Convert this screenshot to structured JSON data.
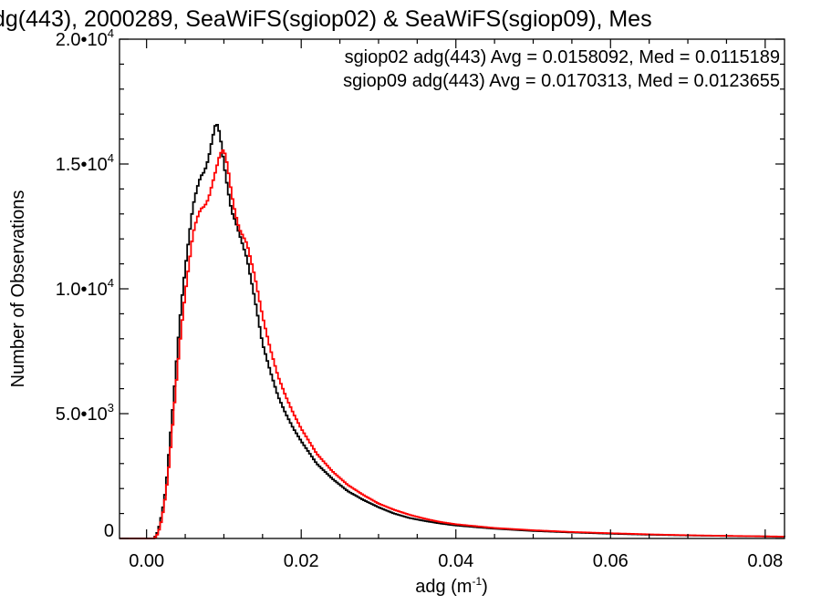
{
  "chart_data": {
    "type": "line",
    "title": "dg(443), 2000289, SeaWiFS(sgiop02) & SeaWiFS(sgiop09), Mes",
    "xlabel": "adg (m",
    "xlabel_sup": "-1",
    "xlabel_close": ")",
    "ylabel": "Number of Observations",
    "xlim": [
      -0.0035,
      0.0825
    ],
    "ylim": [
      0,
      20000
    ],
    "x_ticks": [
      0.0,
      0.02,
      0.04,
      0.06,
      0.08
    ],
    "x_tick_labels": [
      "0.00",
      "0.02",
      "0.04",
      "0.06",
      "0.08"
    ],
    "y_ticks": [
      0,
      5000,
      10000,
      15000,
      20000
    ],
    "y_tick_labels": [
      {
        "base": "0",
        "exp": ""
      },
      {
        "base": "5.0•10",
        "exp": "3"
      },
      {
        "base": "1.0•10",
        "exp": "4"
      },
      {
        "base": "1.5•10",
        "exp": "4"
      },
      {
        "base": "2.0•10",
        "exp": "4"
      }
    ],
    "grid": false,
    "legend_position": "top-right",
    "series": [
      {
        "name": "sgiop02 adg(443) Avg = 0.0158092, Med = 0.0115189",
        "color": "#000000",
        "points": [
          [
            -0.0035,
            0
          ],
          [
            0.001,
            0
          ],
          [
            0.0015,
            300
          ],
          [
            0.002,
            1000
          ],
          [
            0.0025,
            2000
          ],
          [
            0.003,
            3800
          ],
          [
            0.0035,
            5600
          ],
          [
            0.004,
            7600
          ],
          [
            0.0045,
            9400
          ],
          [
            0.005,
            10800
          ],
          [
            0.0055,
            12100
          ],
          [
            0.006,
            13300
          ],
          [
            0.0065,
            14000
          ],
          [
            0.007,
            14500
          ],
          [
            0.0075,
            14700
          ],
          [
            0.008,
            15200
          ],
          [
            0.0085,
            16000
          ],
          [
            0.009,
            16700
          ],
          [
            0.0095,
            16200
          ],
          [
            0.01,
            15000
          ],
          [
            0.0105,
            14000
          ],
          [
            0.011,
            13100
          ],
          [
            0.0115,
            12700
          ],
          [
            0.012,
            12200
          ],
          [
            0.013,
            11200
          ],
          [
            0.014,
            9600
          ],
          [
            0.015,
            7800
          ],
          [
            0.016,
            6700
          ],
          [
            0.017,
            5700
          ],
          [
            0.018,
            5000
          ],
          [
            0.019,
            4400
          ],
          [
            0.02,
            3900
          ],
          [
            0.022,
            3000
          ],
          [
            0.024,
            2400
          ],
          [
            0.026,
            1900
          ],
          [
            0.028,
            1550
          ],
          [
            0.03,
            1250
          ],
          [
            0.032,
            1000
          ],
          [
            0.034,
            820
          ],
          [
            0.036,
            700
          ],
          [
            0.038,
            600
          ],
          [
            0.04,
            520
          ],
          [
            0.045,
            390
          ],
          [
            0.05,
            300
          ],
          [
            0.055,
            240
          ],
          [
            0.06,
            190
          ],
          [
            0.065,
            150
          ],
          [
            0.07,
            120
          ],
          [
            0.075,
            100
          ],
          [
            0.08,
            80
          ],
          [
            0.0825,
            70
          ]
        ]
      },
      {
        "name": "sgiop09 adg(443) Avg = 0.0170313, Med = 0.0123655",
        "color": "#ff0000",
        "points": [
          [
            -0.0035,
            0
          ],
          [
            0.001,
            0
          ],
          [
            0.0015,
            200
          ],
          [
            0.002,
            800
          ],
          [
            0.0025,
            1800
          ],
          [
            0.003,
            3200
          ],
          [
            0.0035,
            5000
          ],
          [
            0.004,
            6800
          ],
          [
            0.0045,
            8400
          ],
          [
            0.005,
            9800
          ],
          [
            0.0055,
            11000
          ],
          [
            0.006,
            12200
          ],
          [
            0.0065,
            12800
          ],
          [
            0.007,
            13200
          ],
          [
            0.0075,
            13300
          ],
          [
            0.008,
            13600
          ],
          [
            0.0085,
            14200
          ],
          [
            0.009,
            14800
          ],
          [
            0.0095,
            15400
          ],
          [
            0.01,
            15600
          ],
          [
            0.0105,
            14900
          ],
          [
            0.011,
            13800
          ],
          [
            0.0115,
            13000
          ],
          [
            0.012,
            12400
          ],
          [
            0.013,
            11800
          ],
          [
            0.014,
            10500
          ],
          [
            0.015,
            8900
          ],
          [
            0.016,
            7600
          ],
          [
            0.017,
            6500
          ],
          [
            0.018,
            5700
          ],
          [
            0.019,
            5000
          ],
          [
            0.02,
            4400
          ],
          [
            0.022,
            3400
          ],
          [
            0.024,
            2700
          ],
          [
            0.026,
            2150
          ],
          [
            0.028,
            1750
          ],
          [
            0.03,
            1400
          ],
          [
            0.032,
            1150
          ],
          [
            0.034,
            950
          ],
          [
            0.036,
            790
          ],
          [
            0.038,
            660
          ],
          [
            0.04,
            570
          ],
          [
            0.045,
            420
          ],
          [
            0.05,
            330
          ],
          [
            0.055,
            260
          ],
          [
            0.06,
            210
          ],
          [
            0.065,
            165
          ],
          [
            0.07,
            130
          ],
          [
            0.075,
            105
          ],
          [
            0.08,
            85
          ],
          [
            0.0825,
            75
          ]
        ]
      }
    ]
  }
}
